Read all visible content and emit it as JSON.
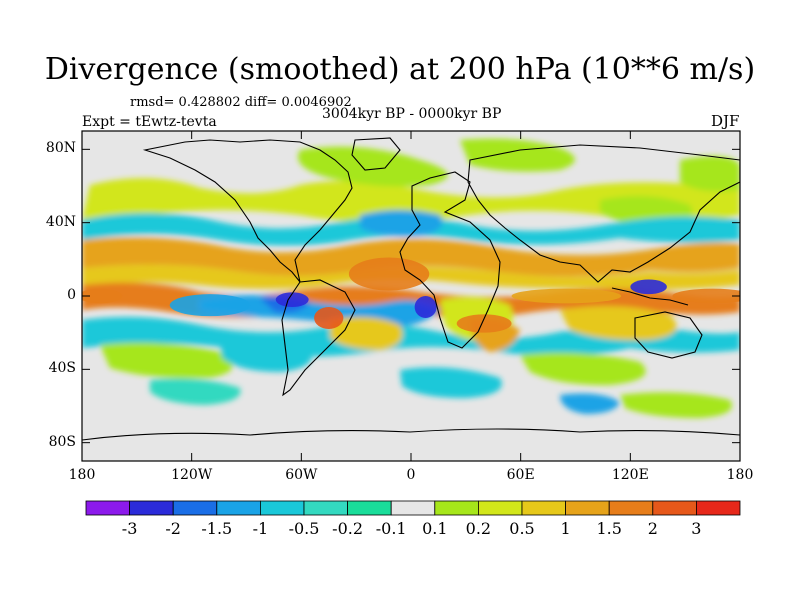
{
  "title": "Divergence (smoothed) at 200 hPa (10**6 m/s)",
  "stats": "rmsd= 0.428802 diff= 0.0046902",
  "period": "3004kyr BP - 0000kyr BP",
  "experiment": "Expt = tEwtz-tevta",
  "season": "DJF",
  "axes": {
    "lat_ticks": [
      {
        "value": 80,
        "label": "80N"
      },
      {
        "value": 40,
        "label": "40N"
      },
      {
        "value": 0,
        "label": "0"
      },
      {
        "value": -40,
        "label": "40S"
      },
      {
        "value": -80,
        "label": "80S"
      }
    ],
    "lon_ticks": [
      {
        "value": -180,
        "label": "180"
      },
      {
        "value": -120,
        "label": "120W"
      },
      {
        "value": -60,
        "label": "60W"
      },
      {
        "value": 0,
        "label": "0"
      },
      {
        "value": 60,
        "label": "60E"
      },
      {
        "value": 120,
        "label": "120E"
      },
      {
        "value": 180,
        "label": "180"
      }
    ]
  },
  "colorbar": {
    "colors": [
      "#8c1aeb",
      "#2b2bd9",
      "#1a6ee6",
      "#1aa3e6",
      "#1ac8d9",
      "#33d9c0",
      "#1add9a",
      "#e6e6e6",
      "#a6e61a",
      "#d2e61a",
      "#e6c81a",
      "#e6a31a",
      "#e67d1a",
      "#e6581a",
      "#e6281a"
    ],
    "labels": [
      "-3",
      "-2",
      "-1.5",
      "-1",
      "-0.5",
      "-0.2",
      "-0.1",
      "0.1",
      "0.2",
      "0.5",
      "1",
      "1.5",
      "2",
      "3"
    ]
  },
  "map_data": {
    "lon_range": [
      -180,
      180
    ],
    "lat_range": [
      -90,
      90
    ],
    "anomaly_blobs": [
      {
        "lon": -12,
        "lat": 12,
        "rx": 22,
        "ry": 9,
        "level": 12
      },
      {
        "lon": -45,
        "lat": -12,
        "rx": 8,
        "ry": 6,
        "level": 13
      },
      {
        "lon": 8,
        "lat": -6,
        "rx": 6,
        "ry": 6,
        "level": 1
      },
      {
        "lon": -65,
        "lat": -2,
        "rx": 9,
        "ry": 4,
        "level": 1
      },
      {
        "lon": 130,
        "lat": 5,
        "rx": 10,
        "ry": 4,
        "level": 1
      },
      {
        "lon": 165,
        "lat": 0,
        "rx": 22,
        "ry": 4,
        "level": 12
      },
      {
        "lon": -170,
        "lat": 0,
        "rx": 12,
        "ry": 4,
        "level": 12
      },
      {
        "lon": 85,
        "lat": 0,
        "rx": 30,
        "ry": 4,
        "level": 11
      },
      {
        "lon": -110,
        "lat": -5,
        "rx": 22,
        "ry": 6,
        "level": 3
      },
      {
        "lon": 40,
        "lat": -15,
        "rx": 15,
        "ry": 5,
        "level": 12
      }
    ],
    "coast_note": "Simplified continental outlines"
  }
}
